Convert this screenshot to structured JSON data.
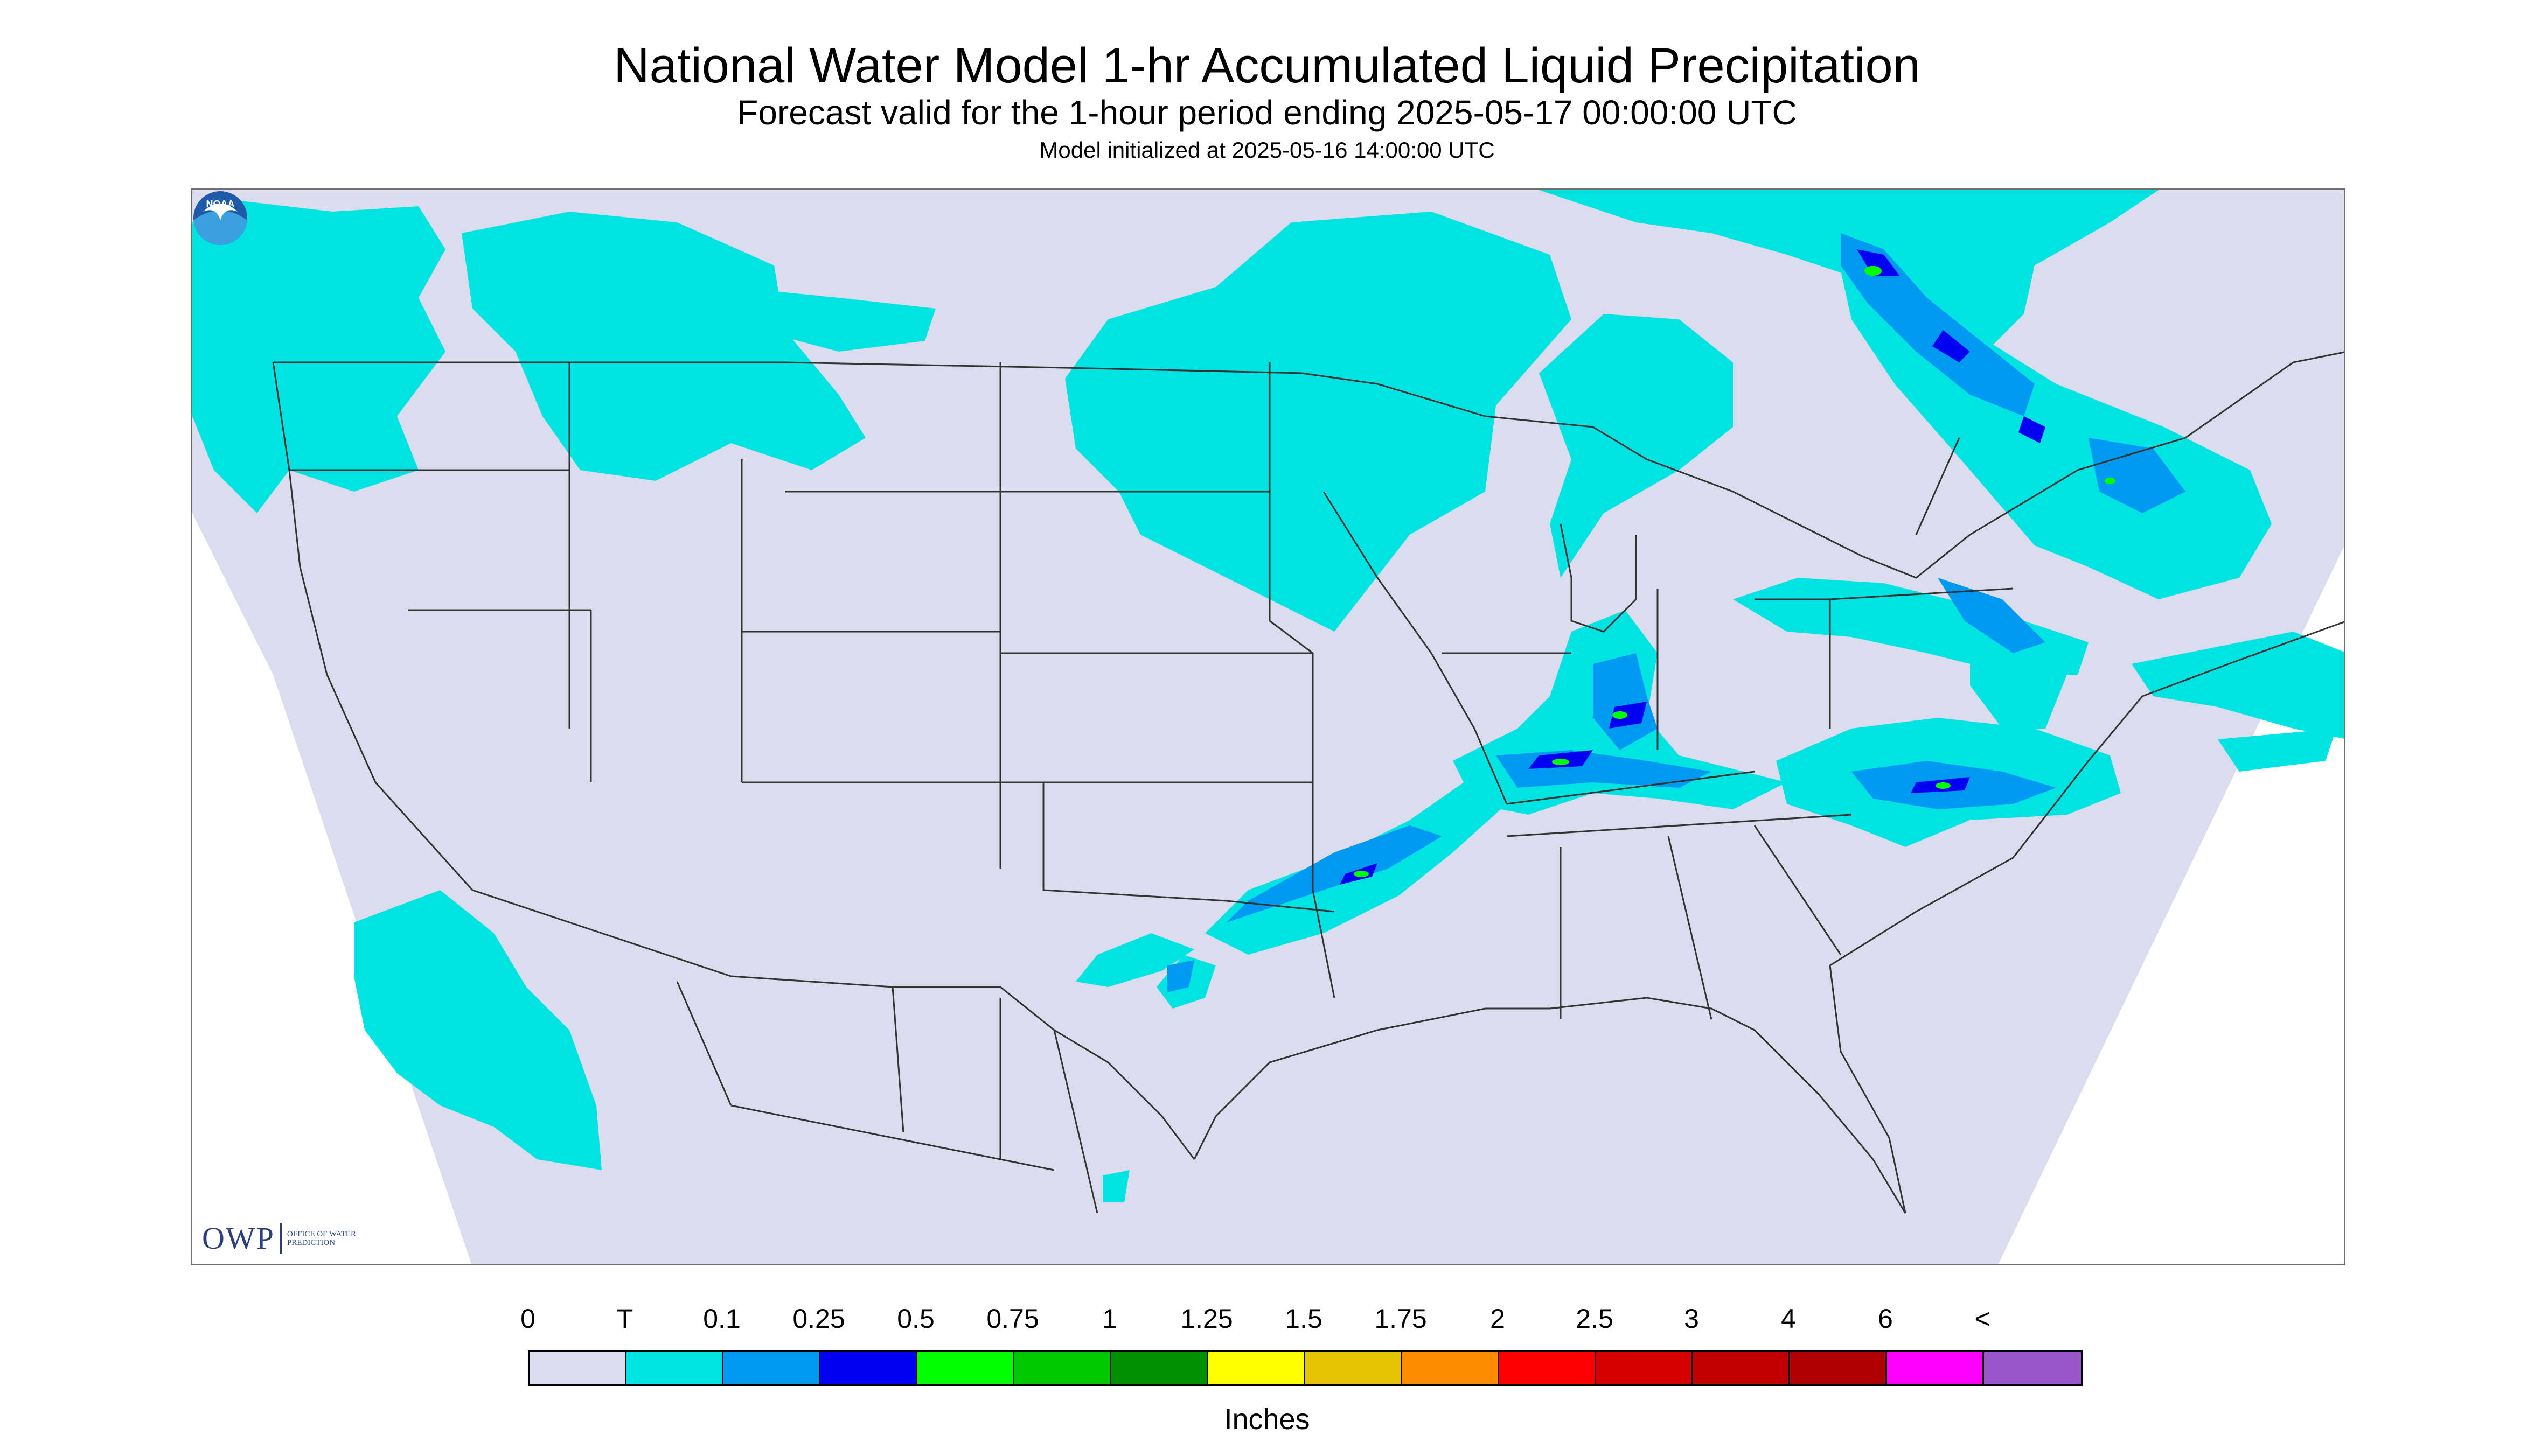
{
  "header": {
    "title": "National Water Model 1-hr Accumulated Liquid Precipitation",
    "subtitle": "Forecast valid for the 1-hour period ending 2025-05-17 00:00:00 UTC",
    "initialized": "Model initialized at 2025-05-16 14:00:00 UTC"
  },
  "logos": {
    "owp_text": "OWP",
    "owp_subtext": "OFFICE OF WATER PREDICTION",
    "noaa_text": "NOAA"
  },
  "map": {
    "region": "CONUS",
    "domain_color": "#dcdcef",
    "outside_color": "#ffffff",
    "boundary_color": "#333333",
    "precip_areas": [
      {
        "name": "pacific-northwest",
        "category": "T"
      },
      {
        "name": "northern-rockies",
        "category": "T"
      },
      {
        "name": "upper-midwest",
        "category": "T"
      },
      {
        "name": "great-lakes",
        "category": "T"
      },
      {
        "name": "quebec-maine-band",
        "category": "0.25"
      },
      {
        "name": "ohio-valley-band",
        "category": "0.75"
      },
      {
        "name": "arkansas-texas-band",
        "category": "0.75"
      },
      {
        "name": "mid-atlantic",
        "category": "0.5"
      },
      {
        "name": "california-coast",
        "category": "T"
      }
    ]
  },
  "legend": {
    "labels": [
      "0",
      "T",
      "0.1",
      "0.25",
      "0.5",
      "0.75",
      "1",
      "1.25",
      "1.5",
      "1.75",
      "2",
      "2.5",
      "3",
      "4",
      "6",
      "<"
    ],
    "colors": [
      "#dcdcef",
      "#00e3e3",
      "#0099f2",
      "#0000f2",
      "#00ff00",
      "#00c800",
      "#008f00",
      "#ffff00",
      "#e6c300",
      "#ff8c00",
      "#ff0000",
      "#d60000",
      "#c30000",
      "#b00000",
      "#ff00ff",
      "#9955c9"
    ],
    "units": "Inches"
  }
}
